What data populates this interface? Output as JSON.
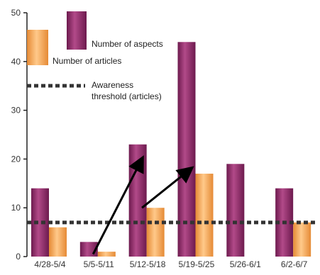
{
  "chart_data": {
    "type": "bar",
    "categories": [
      "4/28-5/4",
      "5/5-5/11",
      "5/12-5/18",
      "5/19-5/25",
      "5/26-6/1",
      "6/2-6/7"
    ],
    "series": [
      {
        "name": "Number of aspects",
        "values": [
          14,
          3,
          23,
          44,
          19,
          14
        ],
        "color": "#8e2a68"
      },
      {
        "name": "Number of articles",
        "values": [
          6,
          1,
          10,
          17,
          0,
          7
        ],
        "color": "#f1a655"
      }
    ],
    "threshold": {
      "label_line1": "Awareness",
      "label_line2": "threshold (articles)",
      "value": 7,
      "color": "#333333"
    },
    "yticks": [
      "0",
      "10",
      "20",
      "30",
      "40",
      "50"
    ],
    "ylim": [
      0,
      50
    ],
    "arrows": [
      {
        "from": [
          1,
          0.5
        ],
        "to": [
          2,
          20
        ]
      },
      {
        "from": [
          2,
          10
        ],
        "to": [
          3,
          18
        ]
      }
    ],
    "legend_position": "top-left",
    "grid": false
  }
}
